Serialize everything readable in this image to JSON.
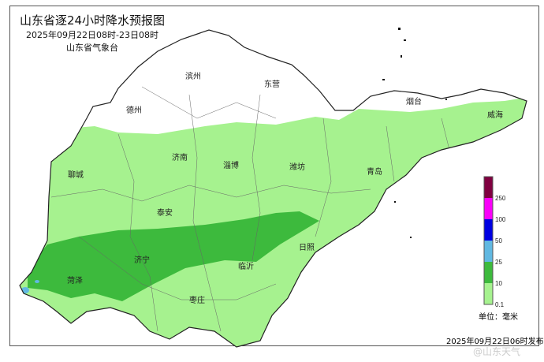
{
  "title": "山东省逐24小时降水预报图",
  "period": "2025年09月22日08时-23日08时",
  "issuer": "山东省气象台",
  "cities": [
    {
      "name": "德州"
    },
    {
      "name": "滨州"
    },
    {
      "name": "东营"
    },
    {
      "name": "烟台"
    },
    {
      "name": "威海"
    },
    {
      "name": "聊城"
    },
    {
      "name": "济南"
    },
    {
      "name": "淄博"
    },
    {
      "name": "潍坊"
    },
    {
      "name": "青岛"
    },
    {
      "name": "泰安"
    },
    {
      "name": "济宁"
    },
    {
      "name": "菏泽"
    },
    {
      "name": "日照"
    },
    {
      "name": "临沂"
    },
    {
      "name": "枣庄"
    }
  ],
  "legend": {
    "unit": "单位：毫米",
    "levels": [
      {
        "label": "0.1",
        "color": "#a6f28f"
      },
      {
        "label": "10",
        "color": "#3dba3d"
      },
      {
        "label": "25",
        "color": "#61b8e1"
      },
      {
        "label": "50",
        "color": "#0000e1"
      },
      {
        "label": "100",
        "color": "#fa00fa"
      },
      {
        "label": "250",
        "color": "#800040"
      }
    ]
  },
  "issued": "2025年09月22日06时发布",
  "watermark": "@山东天气"
}
